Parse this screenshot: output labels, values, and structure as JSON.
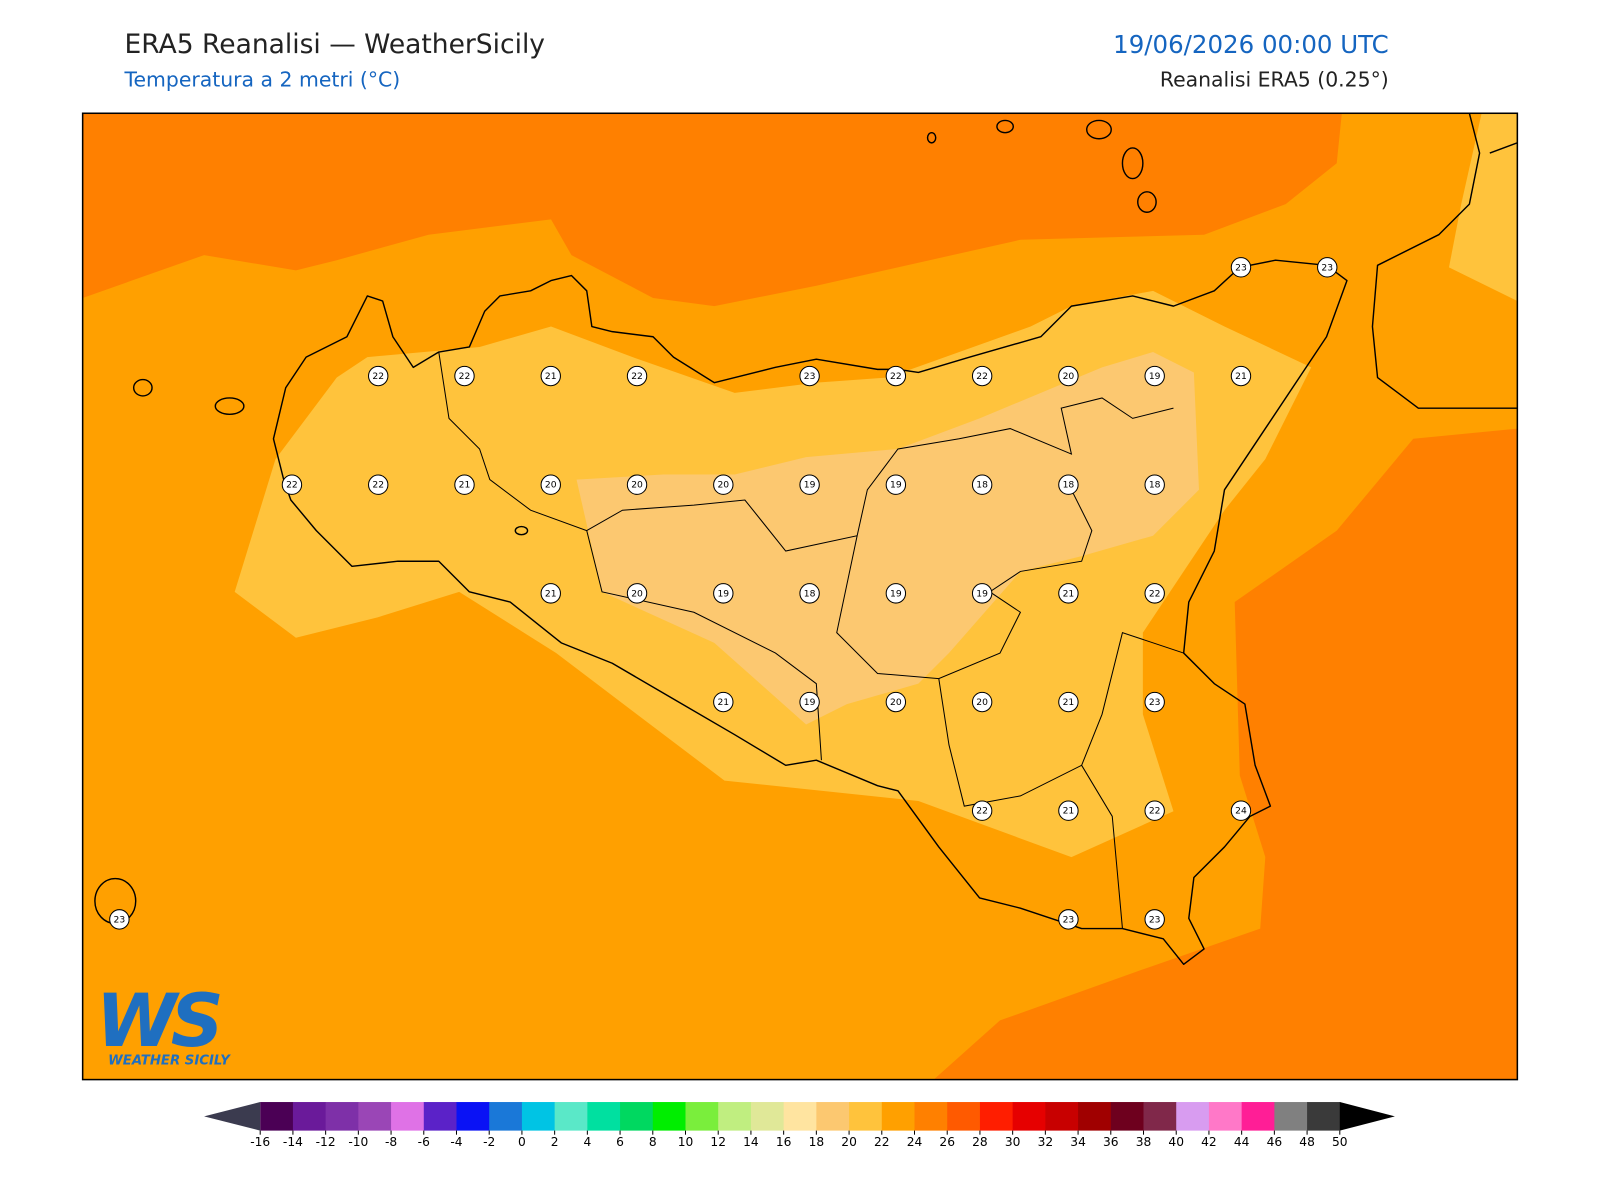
{
  "header": {
    "title": "ERA5 Reanalisi — WeatherSicily",
    "subtitle": "Temperatura a 2 metri (°C)",
    "datetime": "19/06/2026 00:00 UTC",
    "source": "Reanalisi ERA5 (0.25°)"
  },
  "stations": {
    "rows": [
      [
        null,
        null,
        null,
        null,
        null,
        null,
        null,
        null,
        null,
        null,
        null,
        null,
        null,
        23,
        23
      ],
      [
        null,
        null,
        null,
        22,
        22,
        21,
        22,
        null,
        23,
        22,
        22,
        20,
        19,
        21,
        null
      ],
      [
        null,
        null,
        22,
        22,
        21,
        20,
        20,
        20,
        19,
        19,
        18,
        18,
        18,
        null,
        null
      ],
      [
        null,
        null,
        null,
        null,
        null,
        21,
        20,
        19,
        18,
        19,
        19,
        21,
        22,
        null,
        null
      ],
      [
        null,
        null,
        null,
        null,
        null,
        null,
        null,
        21,
        19,
        20,
        20,
        21,
        23,
        null,
        null
      ],
      [
        null,
        null,
        null,
        null,
        null,
        null,
        null,
        null,
        null,
        null,
        22,
        21,
        22,
        24,
        null
      ],
      [
        23,
        null,
        null,
        null,
        null,
        null,
        null,
        null,
        null,
        null,
        null,
        23,
        23,
        null,
        null
      ]
    ]
  },
  "colorbar": {
    "ticks": [
      -16,
      -14,
      -12,
      -10,
      -8,
      -6,
      -4,
      -2,
      0,
      2,
      4,
      6,
      8,
      10,
      12,
      14,
      16,
      18,
      20,
      22,
      24,
      26,
      28,
      30,
      32,
      34,
      36,
      38,
      40,
      42,
      44,
      46,
      48,
      50
    ],
    "colors": [
      "#4b0055",
      "#6a1a9a",
      "#7e30a8",
      "#9a46b6",
      "#df72e6",
      "#5b22c8",
      "#0a12f5",
      "#1a78d8",
      "#00c4e4",
      "#5ae8c8",
      "#00e0a0",
      "#00d860",
      "#00ee00",
      "#7aee3c",
      "#c0ee80",
      "#e0e898",
      "#ffe4a0",
      "#fcc870",
      "#ffc33c",
      "#ffa000",
      "#ff8000",
      "#ff5a00",
      "#ff1e00",
      "#e60000",
      "#c80000",
      "#a00000",
      "#6e001e",
      "#80284a",
      "#d89cf0",
      "#ff78c8",
      "#ff1e96",
      "#808080",
      "#3a3a3a"
    ],
    "extend_colors": [
      "#3b3b4f",
      "#000000"
    ]
  },
  "logo": {
    "mark": "WS",
    "name": "WEATHER SICILY"
  }
}
